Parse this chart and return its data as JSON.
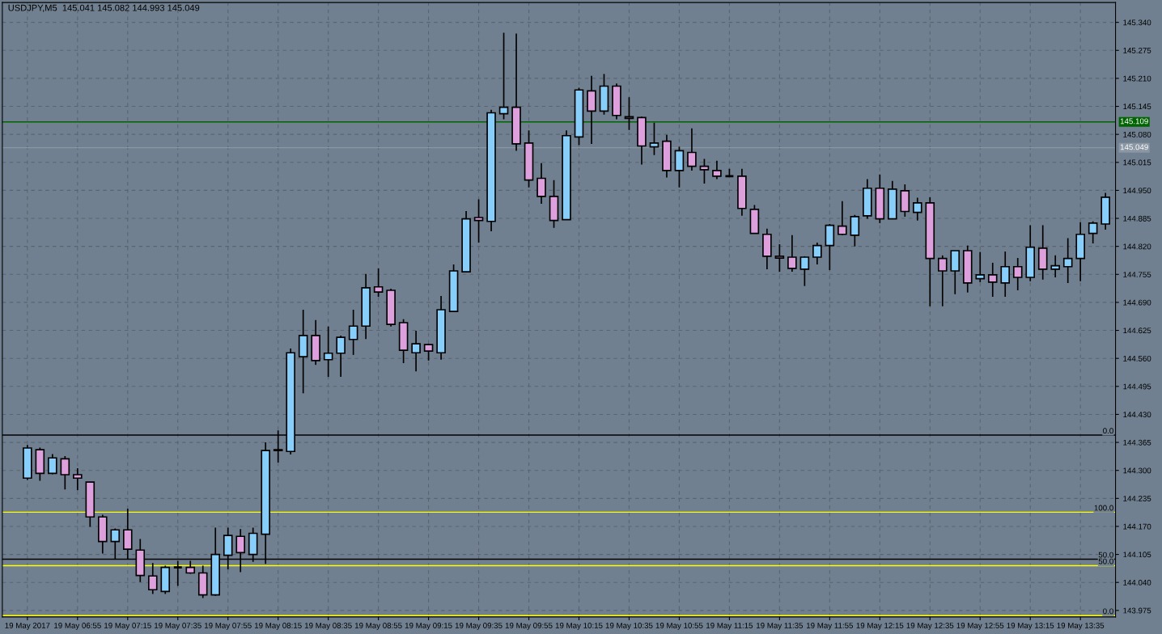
{
  "chart_data": {
    "type": "candlestick",
    "title": "USDJPY,M5  145.041 145.082 144.993 145.049",
    "categories": [
      "19 May 2017",
      null,
      null,
      null,
      "19 May 06:55",
      null,
      null,
      null,
      "19 May 07:15",
      null,
      null,
      null,
      "19 May 07:35",
      null,
      null,
      null,
      "19 May 07:55",
      null,
      null,
      null,
      "19 May 08:15",
      null,
      null,
      null,
      "19 May 08:35",
      null,
      null,
      null,
      "19 May 08:55",
      null,
      null,
      null,
      "19 May 09:15",
      null,
      null,
      null,
      "19 May 09:35",
      null,
      null,
      null,
      "19 May 09:55",
      null,
      null,
      null,
      "19 May 10:15",
      null,
      null,
      null,
      "19 May 10:35",
      null,
      null,
      null,
      "19 May 10:55",
      null,
      null,
      null,
      "19 May 11:15",
      null,
      null,
      null,
      "19 May 11:35",
      null,
      null,
      null,
      "19 May 11:55",
      null,
      null,
      null,
      "19 May 12:15",
      null,
      null,
      null,
      "19 May 12:35",
      null,
      null,
      null,
      "19 May 12:55",
      null,
      null,
      null,
      "19 May 13:15",
      null,
      null,
      null,
      "19 May 13:35",
      null,
      null
    ],
    "ohlc": [
      [
        144.282,
        144.359,
        144.278,
        144.352
      ],
      [
        144.348,
        144.353,
        144.276,
        144.293
      ],
      [
        144.293,
        144.338,
        144.291,
        144.329
      ],
      [
        144.327,
        144.333,
        144.256,
        144.29
      ],
      [
        144.29,
        144.305,
        144.254,
        144.282
      ],
      [
        144.273,
        144.273,
        144.169,
        144.192
      ],
      [
        144.192,
        144.197,
        144.107,
        144.135
      ],
      [
        144.135,
        144.165,
        144.094,
        144.162
      ],
      [
        144.162,
        144.211,
        144.094,
        144.117
      ],
      [
        144.115,
        144.141,
        144.041,
        144.056
      ],
      [
        144.055,
        144.085,
        144.013,
        144.023
      ],
      [
        144.019,
        144.079,
        144.013,
        144.075
      ],
      [
        144.075,
        144.09,
        144.032,
        144.075
      ],
      [
        144.075,
        144.09,
        144.06,
        144.062
      ],
      [
        144.062,
        144.079,
        144.004,
        144.011
      ],
      [
        144.011,
        144.167,
        144.009,
        144.105
      ],
      [
        144.103,
        144.167,
        144.07,
        144.149
      ],
      [
        144.147,
        144.164,
        144.064,
        144.109
      ],
      [
        144.105,
        144.167,
        144.088,
        144.154
      ],
      [
        144.152,
        144.365,
        144.083,
        144.346
      ],
      [
        144.346,
        144.393,
        144.318,
        144.348
      ],
      [
        144.344,
        144.583,
        144.337,
        144.573
      ],
      [
        144.564,
        144.673,
        144.479,
        144.613
      ],
      [
        144.613,
        144.649,
        144.545,
        144.555
      ],
      [
        144.557,
        144.634,
        144.517,
        144.572
      ],
      [
        144.572,
        144.613,
        144.517,
        144.609
      ],
      [
        144.604,
        144.673,
        144.568,
        144.635
      ],
      [
        144.635,
        144.756,
        144.605,
        144.724
      ],
      [
        144.726,
        144.769,
        144.703,
        144.714
      ],
      [
        144.718,
        144.722,
        144.634,
        144.639
      ],
      [
        144.643,
        144.651,
        144.549,
        144.579
      ],
      [
        144.573,
        144.624,
        144.53,
        144.594
      ],
      [
        144.592,
        144.594,
        144.555,
        144.577
      ],
      [
        144.573,
        144.705,
        144.557,
        144.673
      ],
      [
        144.669,
        144.778,
        144.669,
        144.763
      ],
      [
        144.761,
        144.902,
        144.761,
        144.884
      ],
      [
        144.887,
        144.929,
        144.829,
        144.88
      ],
      [
        144.878,
        145.137,
        144.855,
        145.13
      ],
      [
        145.128,
        145.316,
        145.115,
        145.143
      ],
      [
        145.143,
        145.314,
        145.042,
        145.058
      ],
      [
        145.06,
        145.089,
        144.957,
        144.974
      ],
      [
        144.978,
        145.013,
        144.919,
        144.936
      ],
      [
        144.936,
        144.974,
        144.863,
        144.88
      ],
      [
        144.882,
        145.089,
        144.882,
        145.077
      ],
      [
        145.074,
        145.188,
        145.055,
        145.183
      ],
      [
        145.181,
        145.216,
        145.058,
        145.134
      ],
      [
        145.134,
        145.22,
        145.126,
        145.192
      ],
      [
        145.192,
        145.198,
        145.115,
        145.124
      ],
      [
        145.121,
        145.166,
        145.09,
        145.117
      ],
      [
        145.119,
        145.121,
        145.01,
        145.053
      ],
      [
        145.051,
        145.107,
        145.032,
        145.06
      ],
      [
        145.064,
        145.079,
        144.98,
        144.996
      ],
      [
        144.996,
        145.051,
        144.957,
        145.042
      ],
      [
        145.038,
        145.094,
        144.996,
        145.006
      ],
      [
        145.006,
        145.023,
        144.966,
        144.998
      ],
      [
        144.996,
        145.019,
        144.976,
        144.983
      ],
      [
        144.983,
        145.0,
        144.981,
        144.983
      ],
      [
        144.983,
        145.0,
        144.891,
        144.908
      ],
      [
        144.906,
        144.916,
        144.85,
        144.85
      ],
      [
        144.848,
        144.861,
        144.767,
        144.797
      ],
      [
        144.797,
        144.825,
        144.761,
        144.793
      ],
      [
        144.795,
        144.846,
        144.761,
        144.769
      ],
      [
        144.767,
        144.797,
        144.728,
        144.795
      ],
      [
        144.795,
        144.829,
        144.778,
        144.822
      ],
      [
        144.822,
        144.872,
        144.765,
        144.869
      ],
      [
        144.867,
        144.925,
        144.846,
        144.848
      ],
      [
        144.846,
        144.893,
        144.82,
        144.889
      ],
      [
        144.891,
        144.976,
        144.884,
        144.955
      ],
      [
        144.955,
        144.987,
        144.874,
        144.884
      ],
      [
        144.884,
        144.972,
        144.884,
        144.953
      ],
      [
        144.949,
        144.964,
        144.889,
        144.901
      ],
      [
        144.899,
        144.933,
        144.88,
        144.921
      ],
      [
        144.921,
        144.934,
        144.681,
        144.792
      ],
      [
        144.792,
        144.799,
        144.681,
        144.763
      ],
      [
        144.763,
        144.81,
        144.709,
        144.81
      ],
      [
        144.81,
        144.822,
        144.713,
        144.735
      ],
      [
        144.745,
        144.807,
        144.737,
        144.754
      ],
      [
        144.754,
        144.782,
        144.703,
        144.737
      ],
      [
        144.735,
        144.808,
        144.703,
        144.773
      ],
      [
        144.773,
        144.793,
        144.718,
        144.748
      ],
      [
        144.748,
        144.869,
        144.739,
        144.818
      ],
      [
        144.816,
        144.869,
        144.743,
        144.767
      ],
      [
        144.767,
        144.799,
        144.748,
        144.775
      ],
      [
        144.773,
        144.839,
        144.735,
        144.792
      ],
      [
        144.792,
        144.876,
        144.739,
        144.848
      ],
      [
        144.85,
        144.878,
        144.827,
        144.874
      ],
      [
        144.872,
        144.944,
        144.859,
        144.934
      ]
    ],
    "colors": [
      "#87cefa",
      "#dda0dd",
      "#87cefa",
      "#dda0dd",
      "#dda0dd",
      "#dda0dd",
      "#dda0dd",
      "#87cefa",
      "#dda0dd",
      "#dda0dd",
      "#dda0dd",
      "#87cefa",
      "#000000",
      "#dda0dd",
      "#dda0dd",
      "#87cefa",
      "#87cefa",
      "#dda0dd",
      "#87cefa",
      "#87cefa",
      "#dda0dd",
      "#87cefa",
      "#87cefa",
      "#dda0dd",
      "#87cefa",
      "#87cefa",
      "#87cefa",
      "#87cefa",
      "#dda0dd",
      "#dda0dd",
      "#dda0dd",
      "#87cefa",
      "#dda0dd",
      "#87cefa",
      "#87cefa",
      "#87cefa",
      "#dda0dd",
      "#87cefa",
      "#87cefa",
      "#dda0dd",
      "#dda0dd",
      "#dda0dd",
      "#dda0dd",
      "#87cefa",
      "#87cefa",
      "#dda0dd",
      "#87cefa",
      "#dda0dd",
      "#dda0dd",
      "#dda0dd",
      "#87cefa",
      "#dda0dd",
      "#87cefa",
      "#dda0dd",
      "#dda0dd",
      "#dda0dd",
      "#000000",
      "#dda0dd",
      "#dda0dd",
      "#dda0dd",
      "#dda0dd",
      "#dda0dd",
      "#87cefa",
      "#87cefa",
      "#87cefa",
      "#dda0dd",
      "#87cefa",
      "#87cefa",
      "#dda0dd",
      "#87cefa",
      "#dda0dd",
      "#87cefa",
      "#dda0dd",
      "#dda0dd",
      "#87cefa",
      "#dda0dd",
      "#87cefa",
      "#dda0dd",
      "#87cefa",
      "#dda0dd",
      "#87cefa",
      "#dda0dd",
      "#87cefa",
      "#87cefa",
      "#87cefa",
      "#87cefa",
      "#87cefa"
    ],
    "ylim": [
      143.96,
      145.386
    ],
    "yticks": [
      {
        "value": 145.34,
        "label": "145.340"
      },
      {
        "value": 145.275,
        "label": "145.275"
      },
      {
        "value": 145.21,
        "label": "145.210"
      },
      {
        "value": 145.145,
        "label": "145.145"
      },
      {
        "value": 145.08,
        "label": "145.080"
      },
      {
        "value": 145.015,
        "label": "145.015"
      },
      {
        "value": 144.95,
        "label": "144.950"
      },
      {
        "value": 144.885,
        "label": "144.885"
      },
      {
        "value": 144.82,
        "label": "144.820"
      },
      {
        "value": 144.755,
        "label": "144.755"
      },
      {
        "value": 144.69,
        "label": "144.690"
      },
      {
        "value": 144.625,
        "label": "144.625"
      },
      {
        "value": 144.56,
        "label": "144.560"
      },
      {
        "value": 144.495,
        "label": "144.495"
      },
      {
        "value": 144.43,
        "label": "144.430"
      },
      {
        "value": 144.365,
        "label": "144.365"
      },
      {
        "value": 144.3,
        "label": "144.300"
      },
      {
        "value": 144.235,
        "label": "144.235"
      },
      {
        "value": 144.17,
        "label": "144.170"
      },
      {
        "value": 144.105,
        "label": "144.105"
      },
      {
        "value": 144.04,
        "label": "144.040"
      },
      {
        "value": 143.975,
        "label": "143.975"
      }
    ],
    "ref_lines": [
      {
        "axis": "y",
        "value": 145.109,
        "label": "145.109",
        "color": "#006400"
      },
      {
        "axis": "y",
        "value": 145.049,
        "label": "145.049",
        "color": "#8a96a3"
      },
      {
        "axis": "y",
        "value": 144.382,
        "color": "#000000"
      },
      {
        "axis": "y",
        "value": 144.203,
        "color": "#ffff00"
      },
      {
        "axis": "y",
        "value": 144.094,
        "color": "#000000"
      },
      {
        "axis": "y",
        "value": 144.079,
        "color": "#ffff00"
      },
      {
        "axis": "y",
        "value": 143.963,
        "color": "#ffff00"
      }
    ],
    "annotations": [
      {
        "text": "0.0",
        "y": 144.382
      },
      {
        "text": "100.0",
        "y": 144.203
      },
      {
        "text": "50.0",
        "y": 144.094
      },
      {
        "text": "50.0",
        "y": 144.079
      },
      {
        "text": "0.0",
        "y": 143.963
      }
    ],
    "grid": true
  }
}
